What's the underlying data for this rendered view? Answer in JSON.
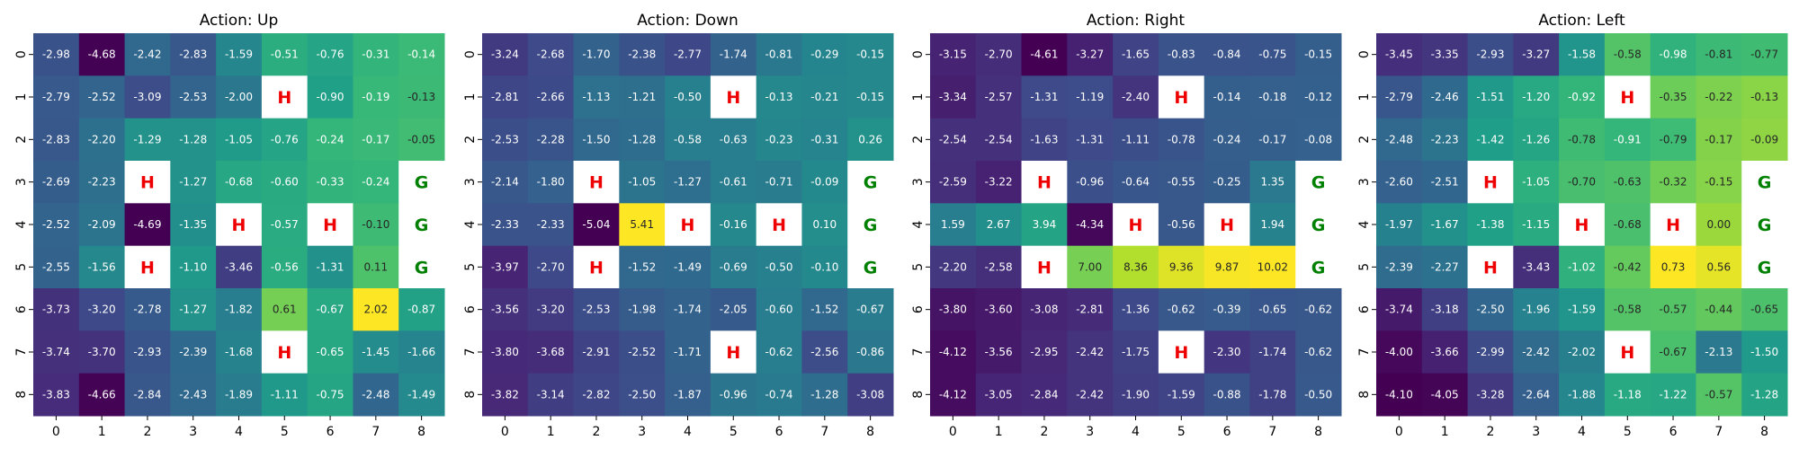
{
  "chart_data": [
    {
      "type": "heatmap",
      "title": "Action: Up",
      "x_ticks": [
        "0",
        "1",
        "2",
        "3",
        "4",
        "5",
        "6",
        "7",
        "8"
      ],
      "y_ticks": [
        "0",
        "1",
        "2",
        "3",
        "4",
        "5",
        "6",
        "7",
        "8"
      ],
      "values": [
        [
          -2.98,
          -4.68,
          -2.42,
          -2.83,
          -1.59,
          -0.51,
          -0.76,
          -0.31,
          -0.14
        ],
        [
          -2.79,
          -2.52,
          -3.09,
          -2.53,
          -2.0,
          null,
          -0.9,
          -0.19,
          -0.13
        ],
        [
          -2.83,
          -2.2,
          -1.29,
          -1.28,
          -1.05,
          -0.76,
          -0.24,
          -0.17,
          -0.05
        ],
        [
          -2.69,
          -2.23,
          null,
          -1.27,
          -0.68,
          -0.6,
          -0.33,
          -0.24,
          null
        ],
        [
          -2.52,
          -2.09,
          -4.69,
          -1.35,
          null,
          -0.57,
          null,
          -0.1,
          null
        ],
        [
          -2.55,
          -1.56,
          null,
          -1.1,
          -3.46,
          -0.56,
          -1.31,
          0.11,
          null
        ],
        [
          -3.73,
          -3.2,
          -2.78,
          -1.27,
          -1.82,
          0.61,
          -0.67,
          2.02,
          -0.87
        ],
        [
          -3.74,
          -3.7,
          -2.93,
          -2.39,
          -1.68,
          null,
          -0.65,
          -1.45,
          -1.66
        ],
        [
          -3.83,
          -4.66,
          -2.84,
          -2.43,
          -1.89,
          -1.11,
          -0.75,
          -2.48,
          -1.49
        ]
      ],
      "markers": [
        {
          "row": 1,
          "col": 5,
          "label": "H",
          "color": "#ee0000"
        },
        {
          "row": 3,
          "col": 2,
          "label": "H",
          "color": "#ee0000"
        },
        {
          "row": 3,
          "col": 8,
          "label": "G",
          "color": "#008000"
        },
        {
          "row": 4,
          "col": 4,
          "label": "H",
          "color": "#ee0000"
        },
        {
          "row": 4,
          "col": 6,
          "label": "H",
          "color": "#ee0000"
        },
        {
          "row": 4,
          "col": 8,
          "label": "G",
          "color": "#008000"
        },
        {
          "row": 5,
          "col": 2,
          "label": "H",
          "color": "#ee0000"
        },
        {
          "row": 5,
          "col": 8,
          "label": "G",
          "color": "#008000"
        },
        {
          "row": 7,
          "col": 5,
          "label": "H",
          "color": "#ee0000"
        }
      ]
    },
    {
      "type": "heatmap",
      "title": "Action: Down",
      "x_ticks": [
        "0",
        "1",
        "2",
        "3",
        "4",
        "5",
        "6",
        "7",
        "8"
      ],
      "y_ticks": [
        "0",
        "1",
        "2",
        "3",
        "4",
        "5",
        "6",
        "7",
        "8"
      ],
      "values": [
        [
          -3.24,
          -2.68,
          -1.7,
          -2.38,
          -2.77,
          -1.74,
          -0.81,
          -0.29,
          -0.15
        ],
        [
          -2.81,
          -2.66,
          -1.13,
          -1.21,
          -0.5,
          null,
          -0.13,
          -0.21,
          -0.15
        ],
        [
          -2.53,
          -2.28,
          -1.5,
          -1.28,
          -0.58,
          -0.63,
          -0.23,
          -0.31,
          0.26
        ],
        [
          -2.14,
          -1.8,
          null,
          -1.05,
          -1.27,
          -0.61,
          -0.71,
          -0.09,
          null
        ],
        [
          -2.33,
          -2.33,
          -5.04,
          5.41,
          null,
          -0.16,
          null,
          0.1,
          null
        ],
        [
          -3.97,
          -2.7,
          null,
          -1.52,
          -1.49,
          -0.69,
          -0.5,
          -0.1,
          null
        ],
        [
          -3.56,
          -3.2,
          -2.53,
          -1.98,
          -1.74,
          -2.05,
          -0.6,
          -1.52,
          -0.67
        ],
        [
          -3.8,
          -3.68,
          -2.91,
          -2.52,
          -1.71,
          null,
          -0.62,
          -2.56,
          -0.86
        ],
        [
          -3.82,
          -3.14,
          -2.82,
          -2.5,
          -1.87,
          -0.96,
          -0.74,
          -1.28,
          -3.08
        ]
      ],
      "markers": [
        {
          "row": 1,
          "col": 5,
          "label": "H",
          "color": "#ee0000"
        },
        {
          "row": 3,
          "col": 2,
          "label": "H",
          "color": "#ee0000"
        },
        {
          "row": 3,
          "col": 8,
          "label": "G",
          "color": "#008000"
        },
        {
          "row": 4,
          "col": 4,
          "label": "H",
          "color": "#ee0000"
        },
        {
          "row": 4,
          "col": 6,
          "label": "H",
          "color": "#ee0000"
        },
        {
          "row": 4,
          "col": 8,
          "label": "G",
          "color": "#008000"
        },
        {
          "row": 5,
          "col": 2,
          "label": "H",
          "color": "#ee0000"
        },
        {
          "row": 5,
          "col": 8,
          "label": "G",
          "color": "#008000"
        },
        {
          "row": 7,
          "col": 5,
          "label": "H",
          "color": "#ee0000"
        }
      ]
    },
    {
      "type": "heatmap",
      "title": "Action: Right",
      "x_ticks": [
        "0",
        "1",
        "2",
        "3",
        "4",
        "5",
        "6",
        "7",
        "8"
      ],
      "y_ticks": [
        "0",
        "1",
        "2",
        "3",
        "4",
        "5",
        "6",
        "7",
        "8"
      ],
      "values": [
        [
          -3.15,
          -2.7,
          -4.61,
          -3.27,
          -1.65,
          -0.83,
          -0.84,
          -0.75,
          -0.15
        ],
        [
          -3.34,
          -2.57,
          -1.31,
          -1.19,
          -2.4,
          null,
          -0.14,
          -0.18,
          -0.12
        ],
        [
          -2.54,
          -2.54,
          -1.63,
          -1.31,
          -1.11,
          -0.78,
          -0.24,
          -0.17,
          -0.08
        ],
        [
          -2.59,
          -3.22,
          null,
          -0.96,
          -0.64,
          -0.55,
          -0.25,
          1.35,
          null
        ],
        [
          1.59,
          2.67,
          3.94,
          -4.34,
          null,
          -0.56,
          null,
          1.94,
          null
        ],
        [
          -2.2,
          -2.58,
          null,
          7.0,
          8.36,
          9.36,
          9.87,
          10.02,
          null
        ],
        [
          -3.8,
          -3.6,
          -3.08,
          -2.81,
          -1.36,
          -0.62,
          -0.39,
          -0.65,
          -0.62
        ],
        [
          -4.12,
          -3.56,
          -2.95,
          -2.42,
          -1.75,
          null,
          -2.3,
          -1.74,
          -0.62
        ],
        [
          -4.12,
          -3.05,
          -2.84,
          -2.42,
          -1.9,
          -1.59,
          -0.88,
          -1.78,
          -0.5
        ]
      ],
      "markers": [
        {
          "row": 1,
          "col": 5,
          "label": "H",
          "color": "#ee0000"
        },
        {
          "row": 3,
          "col": 2,
          "label": "H",
          "color": "#ee0000"
        },
        {
          "row": 3,
          "col": 8,
          "label": "G",
          "color": "#008000"
        },
        {
          "row": 4,
          "col": 4,
          "label": "H",
          "color": "#ee0000"
        },
        {
          "row": 4,
          "col": 6,
          "label": "H",
          "color": "#ee0000"
        },
        {
          "row": 4,
          "col": 8,
          "label": "G",
          "color": "#008000"
        },
        {
          "row": 5,
          "col": 2,
          "label": "H",
          "color": "#ee0000"
        },
        {
          "row": 5,
          "col": 8,
          "label": "G",
          "color": "#008000"
        },
        {
          "row": 7,
          "col": 5,
          "label": "H",
          "color": "#ee0000"
        }
      ]
    },
    {
      "type": "heatmap",
      "title": "Action: Left",
      "x_ticks": [
        "0",
        "1",
        "2",
        "3",
        "4",
        "5",
        "6",
        "7",
        "8"
      ],
      "y_ticks": [
        "0",
        "1",
        "2",
        "3",
        "4",
        "5",
        "6",
        "7",
        "8"
      ],
      "values": [
        [
          -3.45,
          -3.35,
          -2.93,
          -3.27,
          -1.58,
          -0.58,
          -0.98,
          -0.81,
          -0.77
        ],
        [
          -2.79,
          -2.46,
          -1.51,
          -1.2,
          -0.92,
          null,
          -0.35,
          -0.22,
          -0.13
        ],
        [
          -2.48,
          -2.23,
          -1.42,
          -1.26,
          -0.78,
          -0.91,
          -0.79,
          -0.17,
          -0.09
        ],
        [
          -2.6,
          -2.51,
          null,
          -1.05,
          -0.7,
          -0.63,
          -0.32,
          -0.15,
          null
        ],
        [
          -1.97,
          -1.67,
          -1.38,
          -1.15,
          null,
          -0.68,
          null,
          0.0,
          null
        ],
        [
          -2.39,
          -2.27,
          null,
          -3.43,
          -1.02,
          -0.42,
          0.73,
          0.56,
          null
        ],
        [
          -3.74,
          -3.18,
          -2.5,
          -1.96,
          -1.59,
          -0.58,
          -0.57,
          -0.44,
          -0.65
        ],
        [
          -4.0,
          -3.66,
          -2.99,
          -2.42,
          -2.02,
          null,
          -0.67,
          -2.13,
          -1.5
        ],
        [
          -4.1,
          -4.05,
          -3.28,
          -2.64,
          -1.88,
          -1.18,
          -1.22,
          -0.57,
          -1.28
        ]
      ],
      "markers": [
        {
          "row": 1,
          "col": 5,
          "label": "H",
          "color": "#ee0000"
        },
        {
          "row": 3,
          "col": 2,
          "label": "H",
          "color": "#ee0000"
        },
        {
          "row": 3,
          "col": 8,
          "label": "G",
          "color": "#008000"
        },
        {
          "row": 4,
          "col": 4,
          "label": "H",
          "color": "#ee0000"
        },
        {
          "row": 4,
          "col": 6,
          "label": "H",
          "color": "#ee0000"
        },
        {
          "row": 4,
          "col": 8,
          "label": "G",
          "color": "#008000"
        },
        {
          "row": 5,
          "col": 2,
          "label": "H",
          "color": "#ee0000"
        },
        {
          "row": 5,
          "col": 8,
          "label": "G",
          "color": "#008000"
        },
        {
          "row": 7,
          "col": 5,
          "label": "H",
          "color": "#ee0000"
        }
      ]
    }
  ],
  "colormap": "viridis"
}
